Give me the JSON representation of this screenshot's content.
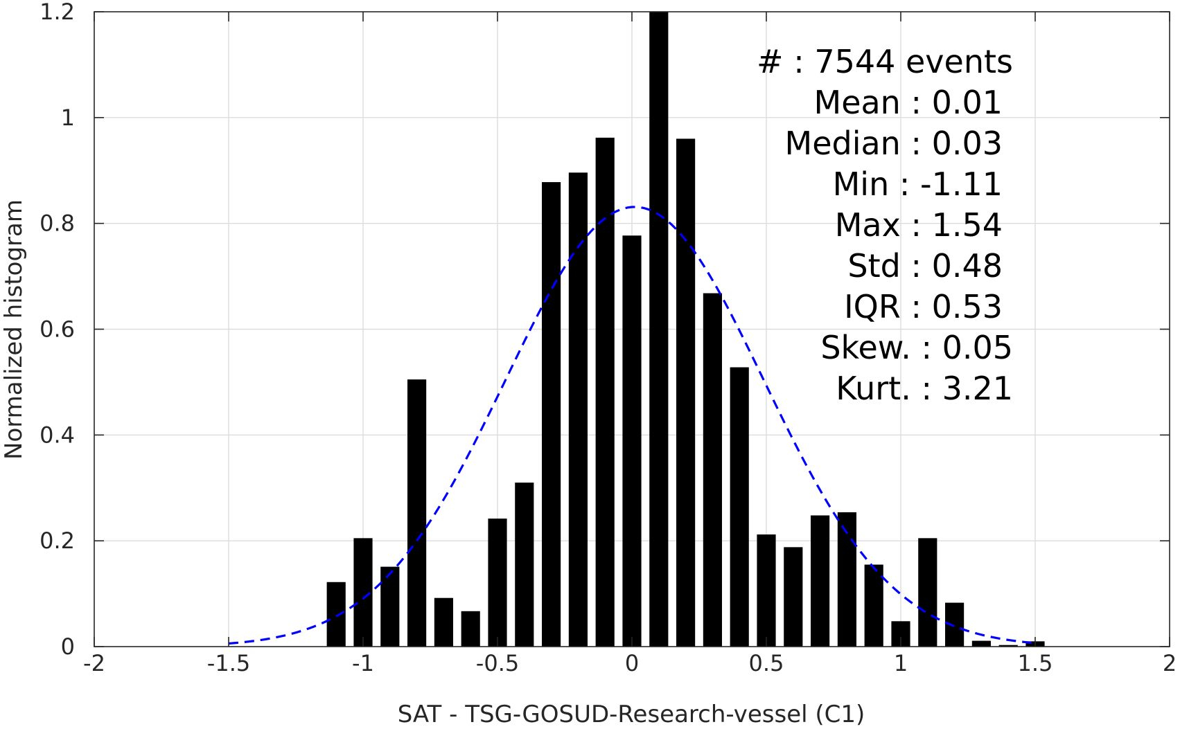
{
  "chart_data": {
    "type": "bar",
    "title": "",
    "xlabel": "SAT - TSG-GOSUD-Research-vessel (C1)",
    "ylabel": "Normalized histogram",
    "xlim": [
      -2,
      2
    ],
    "ylim": [
      0,
      1.2
    ],
    "xticks": [
      -2,
      -1.5,
      -1,
      -0.5,
      0,
      0.5,
      1,
      1.5,
      2
    ],
    "xtick_labels": [
      "-2",
      "-1.5",
      "-1",
      "-0.5",
      "0",
      "0.5",
      "1",
      "1.5",
      "2"
    ],
    "yticks": [
      0,
      0.2,
      0.4,
      0.6,
      0.8,
      1,
      1.2
    ],
    "ytick_labels": [
      "0",
      "0.2",
      "0.4",
      "0.6",
      "0.8",
      "1",
      "1.2"
    ],
    "grid": true,
    "bar_width": 0.07,
    "bar_color": "#000000",
    "bars": {
      "x": [
        -1.1,
        -1.0,
        -0.9,
        -0.8,
        -0.7,
        -0.6,
        -0.5,
        -0.4,
        -0.3,
        -0.2,
        -0.1,
        0.0,
        0.1,
        0.2,
        0.3,
        0.4,
        0.5,
        0.6,
        0.7,
        0.8,
        0.9,
        1.0,
        1.1,
        1.2,
        1.3,
        1.4,
        1.5
      ],
      "values": [
        0.122,
        0.205,
        0.151,
        0.505,
        0.092,
        0.067,
        0.242,
        0.31,
        0.878,
        0.896,
        0.962,
        0.777,
        1.2,
        0.96,
        0.668,
        0.528,
        0.212,
        0.188,
        0.248,
        0.254,
        0.155,
        0.048,
        0.205,
        0.083,
        0.011,
        0.003,
        0.01
      ]
    },
    "fit": {
      "type": "normal",
      "mean": 0.01,
      "std": 0.48,
      "x_range": [
        -1.5,
        1.5
      ],
      "color": "#0000ff",
      "style": "dashed"
    },
    "annotations": [
      {
        "label": "#  ",
        "sep": ": ",
        "value": "7544 events"
      },
      {
        "label": "Mean ",
        "sep": ": ",
        "value": "0.01"
      },
      {
        "label": "Median ",
        "sep": ": ",
        "value": "0.03"
      },
      {
        "label": "Min ",
        "sep": ": ",
        "value": "-1.11"
      },
      {
        "label": "Max ",
        "sep": ": ",
        "value": "1.54"
      },
      {
        "label": "Std ",
        "sep": ": ",
        "value": "0.48"
      },
      {
        "label": "IQR ",
        "sep": ": ",
        "value": "0.53"
      },
      {
        "label": "Skew. ",
        "sep": ": ",
        "value": "0.05"
      },
      {
        "label": "Kurt. ",
        "sep": ": ",
        "value": "3.21"
      }
    ]
  }
}
